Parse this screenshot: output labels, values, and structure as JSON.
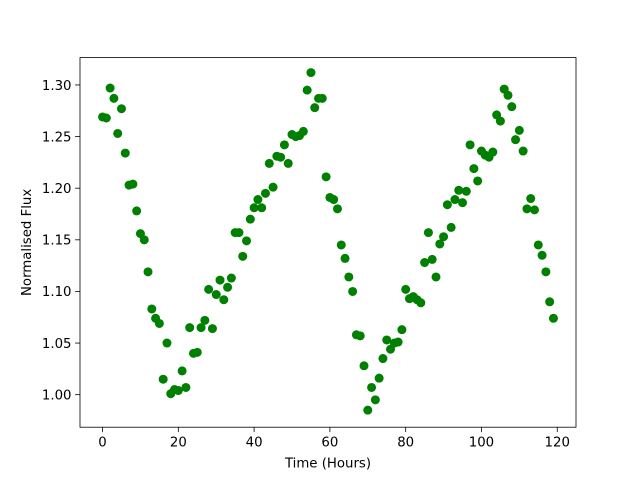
{
  "chart_data": {
    "type": "scatter",
    "xlabel": "Time (Hours)",
    "ylabel": "Normalised Flux",
    "xlim": [
      -5.95,
      124.95
    ],
    "ylim": [
      0.9685,
      1.3265
    ],
    "xticks": [
      0,
      20,
      40,
      60,
      80,
      100,
      120
    ],
    "yticks": [
      1.0,
      1.05,
      1.1,
      1.15,
      1.2,
      1.25,
      1.3
    ],
    "xtick_labels": [
      "0",
      "20",
      "40",
      "60",
      "80",
      "100",
      "120"
    ],
    "ytick_labels": [
      "1.00",
      "1.05",
      "1.10",
      "1.15",
      "1.20",
      "1.25",
      "1.30"
    ],
    "grid": false,
    "marker_color": "#008000",
    "series": [
      {
        "x": [
          0,
          1,
          2,
          3,
          4,
          5,
          6,
          7,
          8,
          9,
          10,
          11,
          12,
          13,
          14,
          15,
          16,
          17,
          18,
          19,
          20,
          21,
          22,
          23,
          24,
          25,
          26,
          27,
          28,
          29,
          30,
          31,
          32,
          33,
          34,
          35,
          36,
          37,
          38,
          39,
          40,
          41,
          42,
          43,
          44,
          45,
          46,
          47,
          48,
          49,
          50,
          51,
          52,
          53,
          54,
          55,
          56,
          57,
          58,
          59,
          60,
          61,
          62,
          63,
          64,
          65,
          66,
          67,
          68,
          69,
          70,
          71,
          72,
          73,
          74,
          75,
          76,
          77,
          78,
          79,
          80,
          81,
          82,
          83,
          84,
          85,
          86,
          87,
          88,
          89,
          90,
          91,
          92,
          93,
          94,
          95,
          96,
          97,
          98,
          99,
          100,
          101,
          102,
          103,
          104,
          105,
          106,
          107,
          108,
          109,
          110,
          111,
          112,
          113,
          114,
          115,
          116,
          117,
          118,
          119
        ],
        "y": [
          1.269,
          1.268,
          1.297,
          1.287,
          1.253,
          1.277,
          1.234,
          1.203,
          1.204,
          1.178,
          1.156,
          1.15,
          1.119,
          1.083,
          1.074,
          1.069,
          1.015,
          1.05,
          1.001,
          1.005,
          1.004,
          1.023,
          1.007,
          1.065,
          1.04,
          1.041,
          1.065,
          1.072,
          1.102,
          1.064,
          1.097,
          1.111,
          1.092,
          1.104,
          1.113,
          1.157,
          1.157,
          1.134,
          1.149,
          1.17,
          1.181,
          1.189,
          1.181,
          1.195,
          1.224,
          1.201,
          1.231,
          1.23,
          1.242,
          1.224,
          1.252,
          1.25,
          1.251,
          1.255,
          1.295,
          1.312,
          1.278,
          1.287,
          1.287,
          1.211,
          1.191,
          1.189,
          1.18,
          1.145,
          1.132,
          1.114,
          1.1,
          1.058,
          1.057,
          1.028,
          0.985,
          1.007,
          0.995,
          1.016,
          1.035,
          1.053,
          1.044,
          1.05,
          1.051,
          1.063,
          1.102,
          1.093,
          1.095,
          1.092,
          1.089,
          1.128,
          1.157,
          1.131,
          1.114,
          1.146,
          1.153,
          1.184,
          1.162,
          1.189,
          1.198,
          1.186,
          1.197,
          1.242,
          1.219,
          1.207,
          1.236,
          1.232,
          1.23,
          1.235,
          1.271,
          1.265,
          1.296,
          1.29,
          1.279,
          1.247,
          1.256,
          1.236,
          1.18,
          1.19,
          1.179,
          1.145,
          1.135,
          1.119,
          1.09,
          1.074
        ]
      }
    ]
  }
}
